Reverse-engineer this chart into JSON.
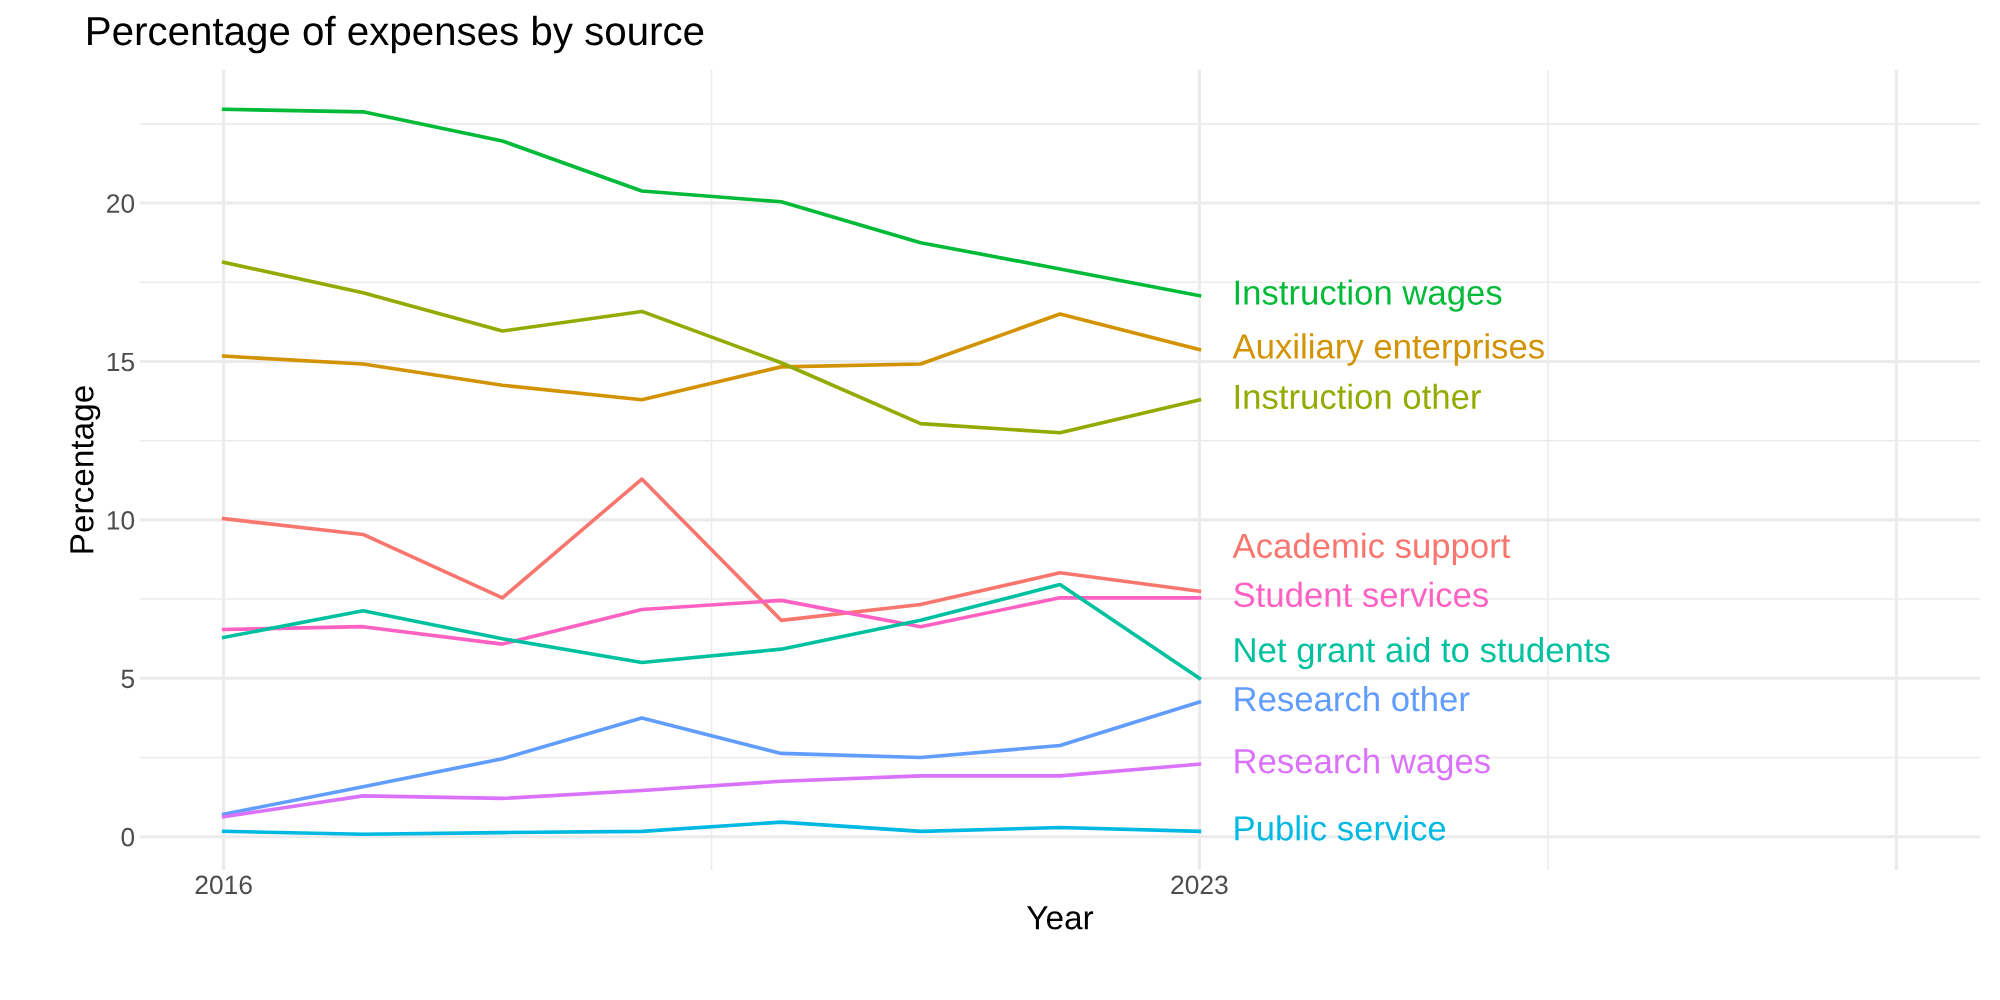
{
  "chart_data": {
    "type": "line",
    "title": "Percentage of expenses by source",
    "xlabel": "Year",
    "ylabel": "Percentage",
    "x": [
      2016,
      2017,
      2018,
      2019,
      2020,
      2021,
      2022,
      2023
    ],
    "series": [
      {
        "name": "Instruction wages",
        "color": "#00ba38",
        "values": [
          22.96,
          22.88,
          21.96,
          20.38,
          20.04,
          18.75,
          17.92,
          17.08
        ]
      },
      {
        "name": "Auxiliary enterprises",
        "color": "#d39200",
        "values": [
          15.17,
          14.92,
          14.25,
          13.79,
          14.83,
          14.92,
          16.5,
          15.38
        ]
      },
      {
        "name": "Instruction other",
        "color": "#93aa00",
        "values": [
          18.13,
          17.17,
          15.96,
          16.58,
          14.96,
          13.04,
          12.75,
          13.79
        ]
      },
      {
        "name": "Academic support",
        "color": "#f8766d",
        "values": [
          10.04,
          9.54,
          7.54,
          11.29,
          6.83,
          7.33,
          8.33,
          7.75
        ]
      },
      {
        "name": "Student services",
        "color": "#ff61c3",
        "values": [
          6.54,
          6.63,
          6.08,
          7.17,
          7.46,
          6.63,
          7.54,
          7.54
        ]
      },
      {
        "name": "Net grant aid to students",
        "color": "#00c19f",
        "values": [
          6.29,
          7.13,
          6.25,
          5.5,
          5.92,
          6.83,
          7.96,
          5.0
        ]
      },
      {
        "name": "Research other",
        "color": "#619cff",
        "values": [
          0.71,
          1.58,
          2.46,
          3.75,
          2.63,
          2.5,
          2.88,
          4.25
        ]
      },
      {
        "name": "Research wages",
        "color": "#db72fb",
        "values": [
          0.63,
          1.29,
          1.21,
          1.46,
          1.75,
          1.92,
          1.92,
          2.29
        ]
      },
      {
        "name": "Public service",
        "color": "#00b9e3",
        "values": [
          0.17,
          0.08,
          0.13,
          0.17,
          0.46,
          0.17,
          0.29,
          0.17
        ]
      }
    ],
    "xlim": [
      2015.4,
      2028.6
    ],
    "ylim": [
      -1.05,
      24.2
    ],
    "xticks": [
      2016,
      2023,
      {
        "value": 2028,
        "label": null
      }
    ],
    "yticks": [
      0,
      5,
      10,
      15,
      20
    ],
    "grid": true,
    "legend": false
  }
}
